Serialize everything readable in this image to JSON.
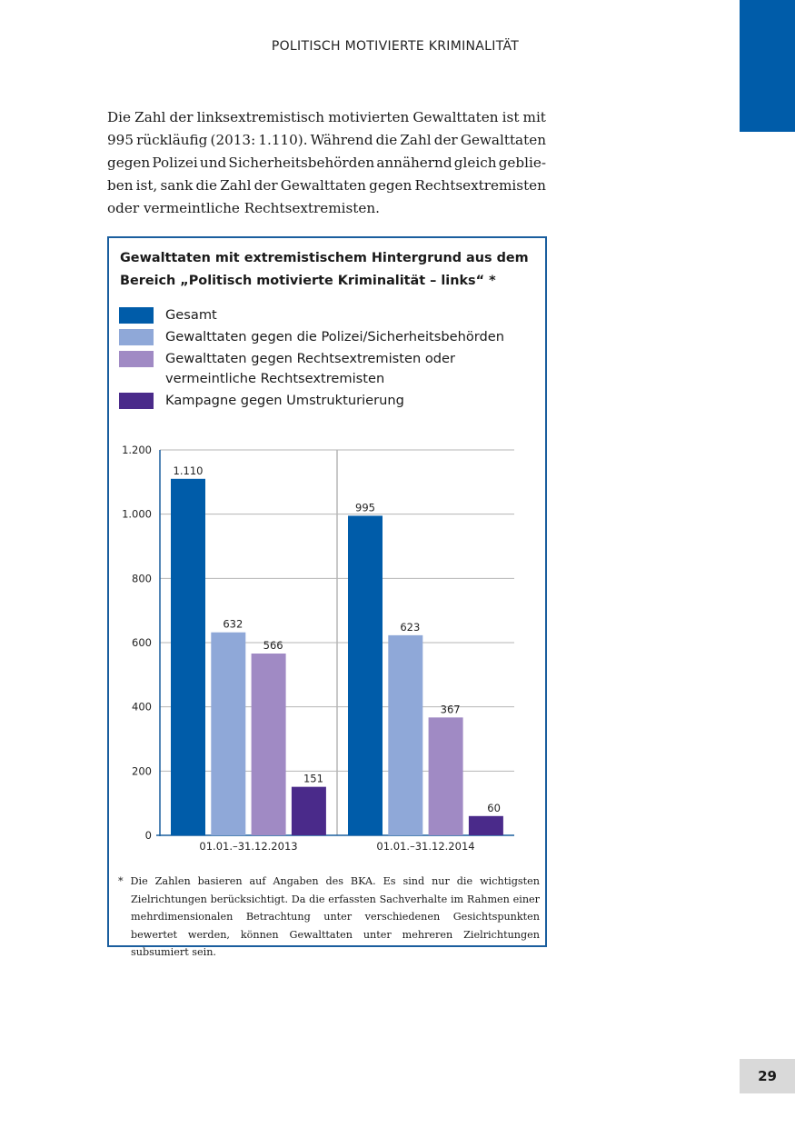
{
  "header": "POLITISCH MOTIVIERTE KRIMINALITÄT",
  "paragraph_lines": [
    "Die Zahl der linksextremistisch motivierten Gewalttaten ist mit",
    "995 rückläufig (2013: 1.110). Während die Zahl der Gewalttaten",
    "gegen Polizei und Sicherheitsbehörden annähernd gleich geblie-",
    "ben ist, sank die Zahl der Gewalttaten gegen Rechtsextremisten",
    "oder vermeintliche Rechtsextremisten."
  ],
  "footnote": "* Die Zahlen basieren auf Angaben des BKA. Es sind nur die wichtigsten Zielrichtungen berücksichtigt. Da die erfassten Sachverhalte im Rahmen einer mehrdimensionalen Betrachtung unter verschiedenen Gesichtspunkten bewertet werden, können Gewalttaten unter mehreren Zielrichtungen subsumiert sein.",
  "page_number": "29",
  "colors": {
    "accent": "#005ca9",
    "frame": "#1a5e9e"
  },
  "chart_data": {
    "type": "bar",
    "title": "Gewalttaten mit extremistischem Hintergrund aus dem Bereich „Politisch motivierte Kriminalität – links“ *",
    "categories": [
      "01.01.–31.12.2013",
      "01.01.–31.12.2014"
    ],
    "series": [
      {
        "name": "Gesamt",
        "color": "#005ca9",
        "values": [
          1110,
          995
        ],
        "labels": [
          "1.110",
          "995"
        ]
      },
      {
        "name": "Gewalttaten gegen die Polizei/Sicherheitsbehörden",
        "color": "#8fa8d8",
        "values": [
          632,
          623
        ],
        "labels": [
          "632",
          "623"
        ]
      },
      {
        "name": "Gewalttaten gegen Rechtsextremisten oder vermeintliche Rechtsextremisten",
        "color": "#a08ac4",
        "values": [
          566,
          367
        ],
        "labels": [
          "566",
          "367"
        ]
      },
      {
        "name": "Kampagne gegen Umstrukturierung",
        "color": "#4a2a8a",
        "values": [
          151,
          60
        ],
        "labels": [
          "151",
          "60"
        ]
      }
    ],
    "ylim": [
      0,
      1200
    ],
    "yticks": [
      0,
      200,
      400,
      600,
      800,
      1000,
      1200
    ],
    "ytick_labels": [
      "0",
      "200",
      "400",
      "600",
      "800",
      "1.000",
      "1.200"
    ],
    "xlabel": "",
    "ylabel": "",
    "grid": true,
    "legend": "top"
  }
}
